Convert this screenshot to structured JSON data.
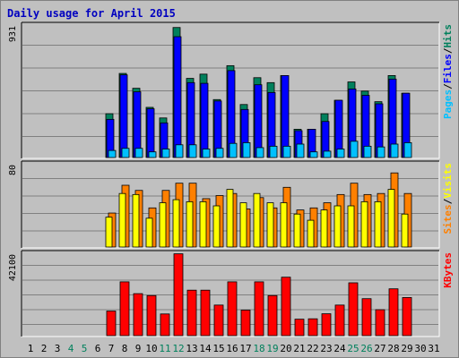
{
  "title": "Daily usage for April 2015",
  "colors": {
    "hits": "#00805c",
    "files": "#0000ff",
    "pages": "#00c0ff",
    "visits": "#ffff00",
    "sites": "#ff8000",
    "kbytes": "#ff0000",
    "title": "#0000c0",
    "weekend": "#00805c",
    "weekday": "#000000"
  },
  "chart_data": [
    {
      "type": "bar",
      "panel": "top",
      "ymax_label": "931",
      "ylim": [
        0,
        931
      ],
      "legend": [
        "Pages",
        "/",
        "Files",
        "/",
        "Hits"
      ],
      "categories": [
        "1",
        "2",
        "3",
        "4",
        "5",
        "6",
        "7",
        "8",
        "9",
        "10",
        "11",
        "12",
        "13",
        "14",
        "15",
        "16",
        "17",
        "18",
        "19",
        "20",
        "21",
        "22",
        "23",
        "24",
        "25",
        "26",
        "27",
        "28",
        "29",
        "30",
        "31"
      ],
      "series": [
        {
          "name": "Hits",
          "values": [
            0,
            0,
            0,
            0,
            0,
            0,
            310,
            595,
            490,
            355,
            280,
            920,
            560,
            590,
            410,
            650,
            375,
            565,
            530,
            580,
            200,
            200,
            310,
            405,
            535,
            470,
            395,
            580,
            455,
            0,
            0
          ]
        },
        {
          "name": "Files",
          "values": [
            0,
            0,
            0,
            0,
            0,
            0,
            270,
            585,
            465,
            345,
            245,
            855,
            530,
            525,
            400,
            615,
            340,
            515,
            460,
            580,
            190,
            200,
            255,
            405,
            485,
            440,
            380,
            555,
            455,
            0,
            0
          ]
        },
        {
          "name": "Pages",
          "values": [
            0,
            0,
            0,
            0,
            0,
            0,
            50,
            65,
            65,
            40,
            60,
            90,
            90,
            60,
            65,
            100,
            105,
            70,
            80,
            80,
            95,
            40,
            45,
            60,
            115,
            80,
            75,
            95,
            105,
            0,
            0
          ]
        }
      ]
    },
    {
      "type": "bar",
      "panel": "middle",
      "ymax_label": "80",
      "ylim": [
        0,
        80
      ],
      "legend": [
        "Sites",
        "/",
        "Visits"
      ],
      "categories": [
        "1",
        "2",
        "3",
        "4",
        "5",
        "6",
        "7",
        "8",
        "9",
        "10",
        "11",
        "12",
        "13",
        "14",
        "15",
        "16",
        "17",
        "18",
        "19",
        "20",
        "21",
        "22",
        "23",
        "24",
        "25",
        "26",
        "27",
        "28",
        "29",
        "30",
        "31"
      ],
      "series": [
        {
          "name": "Visits",
          "values": [
            0,
            0,
            0,
            0,
            0,
            0,
            29,
            52,
            51,
            28,
            43,
            46,
            44,
            44,
            40,
            56,
            43,
            52,
            43,
            43,
            32,
            26,
            36,
            40,
            40,
            44,
            44,
            56,
            32,
            0,
            0
          ]
        },
        {
          "name": "Sites",
          "values": [
            0,
            0,
            0,
            0,
            0,
            0,
            33,
            60,
            55,
            38,
            55,
            62,
            62,
            47,
            50,
            52,
            37,
            48,
            38,
            58,
            36,
            38,
            43,
            51,
            62,
            51,
            52,
            72,
            52,
            0,
            0
          ]
        }
      ]
    },
    {
      "type": "bar",
      "panel": "bottom",
      "ymax_label": "42100",
      "ylim": [
        0,
        42100
      ],
      "legend": [
        "KBytes"
      ],
      "categories": [
        "1",
        "2",
        "3",
        "4",
        "5",
        "6",
        "7",
        "8",
        "9",
        "10",
        "11",
        "12",
        "13",
        "14",
        "15",
        "16",
        "17",
        "18",
        "19",
        "20",
        "21",
        "22",
        "23",
        "24",
        "25",
        "26",
        "27",
        "28",
        "29",
        "30",
        "31"
      ],
      "series": [
        {
          "name": "KBytes",
          "values": [
            0,
            0,
            0,
            0,
            0,
            0,
            12700,
            27800,
            21700,
            20700,
            11200,
            42300,
            23500,
            23500,
            15800,
            27800,
            13200,
            27800,
            20700,
            30200,
            8500,
            8700,
            11300,
            15800,
            27300,
            19100,
            13400,
            24200,
            19700,
            0,
            0
          ]
        }
      ]
    }
  ],
  "x_axis": {
    "labels": [
      "1",
      "2",
      "3",
      "4",
      "5",
      "6",
      "7",
      "8",
      "9",
      "10",
      "11",
      "12",
      "13",
      "14",
      "15",
      "16",
      "17",
      "18",
      "19",
      "20",
      "21",
      "22",
      "23",
      "24",
      "25",
      "26",
      "27",
      "28",
      "29",
      "30",
      "31"
    ],
    "weekend": [
      4,
      5,
      11,
      12,
      18,
      19,
      25,
      26
    ]
  }
}
